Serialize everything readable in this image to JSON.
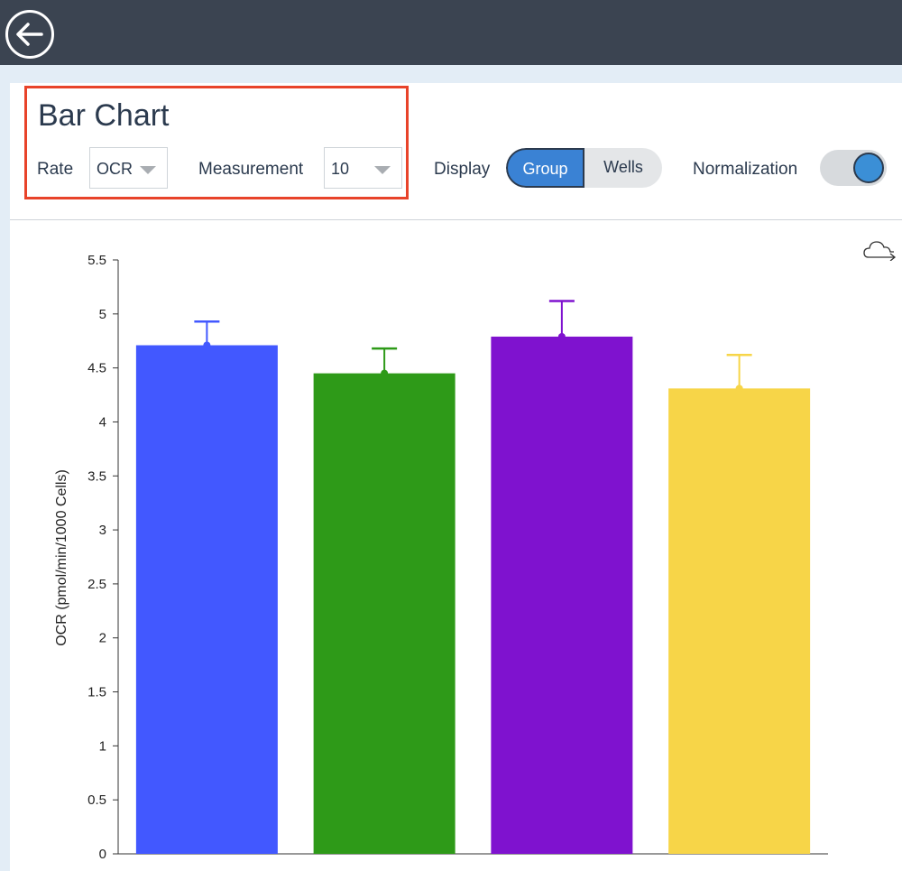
{
  "header": {
    "back_icon": "arrow-left-circle-icon"
  },
  "page": {
    "title": "Bar Chart"
  },
  "controls": {
    "rate": {
      "label": "Rate",
      "value": "OCR"
    },
    "measurement": {
      "label": "Measurement",
      "value": "10"
    },
    "display": {
      "label": "Display",
      "options": [
        "Group",
        "Wells"
      ],
      "selected": "Group"
    },
    "normalization": {
      "label": "Normalization",
      "on": true
    }
  },
  "export_icon": "cloud-export-icon",
  "colors": {
    "accent": "#3a82d4",
    "highlight": "#e8432a",
    "header_bg": "#3b4451"
  },
  "chart_data": {
    "type": "bar",
    "ylabel": "OCR (pmol/min/1000 Cells)",
    "ylim": [
      0,
      5.5
    ],
    "yticks": [
      "0",
      "0.5",
      "1",
      "1.5",
      "2",
      "2.5",
      "3",
      "3.5",
      "4",
      "4.5",
      "5",
      "5.5"
    ],
    "grid": false,
    "bars": [
      {
        "value": 4.71,
        "error": 0.22,
        "color": "#4258ff"
      },
      {
        "value": 4.45,
        "error": 0.23,
        "color": "#2e9a18"
      },
      {
        "value": 4.79,
        "error": 0.33,
        "color": "#7f12cf"
      },
      {
        "value": 4.31,
        "error": 0.31,
        "color": "#f7d548"
      }
    ]
  }
}
